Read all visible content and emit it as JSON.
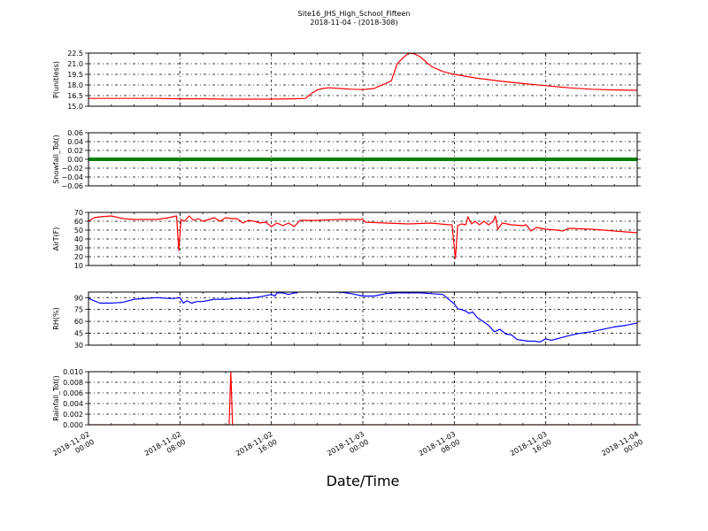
{
  "figure": {
    "title_line1": "Site16_JHS_High_School_Fifteen",
    "title_line2": "2018-11-04 - (2018-308)",
    "xlabel": "Date/Time",
    "x_ticks": [
      {
        "l1": "2018-11-02",
        "l2": "00:00",
        "h": 0
      },
      {
        "l1": "2018-11-02",
        "l2": "08:00",
        "h": 8
      },
      {
        "l1": "2018-11-02",
        "l2": "16:00",
        "h": 16
      },
      {
        "l1": "2018-11-03",
        "l2": "00:00",
        "h": 24
      },
      {
        "l1": "2018-11-03",
        "l2": "08:00",
        "h": 32
      },
      {
        "l1": "2018-11-03",
        "l2": "16:00",
        "h": 40
      },
      {
        "l1": "2018-11-04",
        "l2": "00:00",
        "h": 48
      }
    ]
  },
  "chart_data": [
    {
      "type": "line",
      "ylabel": "P(unitless)",
      "ylim": [
        15.0,
        22.5
      ],
      "yticks": [
        "15.0",
        "16.5",
        "18.0",
        "19.5",
        "21.0",
        "22.5"
      ],
      "color": "#ff0000",
      "grid": true,
      "x": [
        0,
        2,
        4,
        6,
        8,
        10,
        12,
        14,
        16,
        18,
        19,
        19.5,
        20,
        20.5,
        21,
        22,
        23,
        24,
        25,
        25.5,
        26,
        26.5,
        27,
        27.5,
        28,
        28.5,
        29,
        30,
        31,
        32,
        34,
        36,
        38,
        40,
        42,
        44,
        46,
        48
      ],
      "y": [
        16.1,
        16.1,
        16.1,
        16.1,
        16.05,
        16.05,
        16.0,
        16.0,
        16.0,
        16.05,
        16.1,
        16.8,
        17.3,
        17.5,
        17.6,
        17.5,
        17.4,
        17.35,
        17.5,
        17.9,
        18.2,
        18.6,
        21.0,
        21.8,
        22.5,
        22.4,
        22.0,
        20.6,
        19.9,
        19.5,
        18.95,
        18.55,
        18.2,
        17.9,
        17.6,
        17.4,
        17.3,
        17.25
      ]
    },
    {
      "type": "line",
      "ylabel": "Snowfall_Tot()",
      "ylim": [
        -0.06,
        0.06
      ],
      "yticks": [
        "−0.06",
        "−0.04",
        "−0.02",
        "0.00",
        "0.02",
        "0.04",
        "0.06"
      ],
      "color": "#008000",
      "grid": true,
      "x": [
        0,
        48
      ],
      "y": [
        0.0,
        0.0
      ]
    },
    {
      "type": "line",
      "ylabel": "AirT(F)",
      "ylim": [
        10,
        70
      ],
      "yticks": [
        "10",
        "20",
        "30",
        "40",
        "50",
        "60",
        "70"
      ],
      "color": "#ff0000",
      "grid": true,
      "x": [
        0,
        0.5,
        1,
        2,
        3,
        4,
        5,
        6,
        7,
        7.7,
        7.9,
        8.1,
        8.4,
        8.8,
        9.2,
        9.6,
        10,
        10.5,
        11,
        11.5,
        12,
        12.5,
        13,
        13.5,
        14,
        14.5,
        15,
        15.5,
        16,
        16.5,
        17,
        17.5,
        18,
        18.5,
        19,
        20,
        22,
        24,
        24.2,
        26,
        28,
        30,
        31.5,
        31.8,
        32.1,
        32.3,
        32.6,
        33,
        33.2,
        33.5,
        33.8,
        34.2,
        34.6,
        35,
        35.4,
        35.6,
        35.8,
        36.2,
        37,
        38,
        38.3,
        38.7,
        39.2,
        40,
        41,
        41.5,
        42,
        44,
        46,
        48
      ],
      "y": [
        60,
        64,
        65,
        66,
        63,
        62,
        62,
        62,
        64,
        66,
        27,
        62,
        60,
        66,
        61,
        63,
        60,
        62,
        64,
        60,
        64,
        63,
        63,
        58,
        61,
        60,
        58,
        59,
        54,
        58,
        55,
        58,
        54,
        61,
        61,
        61,
        62,
        62,
        59,
        58,
        57,
        58,
        56,
        56,
        18,
        55,
        57,
        56,
        65,
        57,
        60,
        56,
        60,
        56,
        60,
        66,
        51,
        58,
        56,
        55,
        56,
        49,
        53,
        51,
        50,
        49,
        52,
        51,
        49,
        47
      ]
    },
    {
      "type": "line",
      "ylabel": "RH(%)",
      "ylim": [
        30,
        97
      ],
      "yticks": [
        "30",
        "45",
        "60",
        "75",
        "90"
      ],
      "color": "#0000ff",
      "grid": true,
      "x": [
        0,
        1,
        2,
        3,
        4,
        5,
        6,
        7,
        7.5,
        8,
        8.3,
        8.6,
        9,
        9.5,
        10,
        11,
        12,
        13,
        14,
        15,
        16,
        16.3,
        16.5,
        17,
        17.5,
        18,
        18.3
      ],
      "y": [
        89,
        83,
        83,
        84,
        88,
        89,
        90,
        89,
        89,
        90,
        83,
        86,
        83,
        85,
        85,
        88,
        88,
        89,
        89,
        91,
        94,
        92,
        96,
        96,
        94,
        96,
        96
      ],
      "x2": [
        21,
        22,
        23,
        24,
        25,
        26,
        27,
        28,
        29,
        30,
        31,
        31.5,
        32,
        32.3,
        32.6,
        33,
        33.3,
        33.6,
        34,
        34.5,
        35,
        35.5,
        36,
        36.5,
        37,
        37.5,
        38,
        38.5,
        39,
        39.5,
        40,
        40.5,
        41,
        42,
        43,
        44,
        45,
        46,
        47,
        48
      ],
      "y2": [
        97,
        97,
        95,
        92,
        92,
        95,
        96,
        96,
        96,
        95,
        94,
        88,
        82,
        76,
        75,
        73,
        70,
        72,
        65,
        60,
        55,
        47,
        50,
        44,
        43,
        37,
        36,
        35,
        35,
        34,
        38,
        36,
        38,
        42,
        45,
        47,
        50,
        53,
        55,
        58
      ]
    },
    {
      "type": "line",
      "ylabel": "Rainfall_Tot()",
      "ylim": [
        0.0,
        0.01
      ],
      "yticks": [
        "0.000",
        "0.002",
        "0.004",
        "0.006",
        "0.008",
        "0.010"
      ],
      "color": "#ff0000",
      "grid": true,
      "x": [
        0,
        12.3,
        12.45,
        12.6,
        48
      ],
      "y": [
        0.0,
        0.0,
        0.01,
        0.0,
        0.0
      ]
    }
  ]
}
